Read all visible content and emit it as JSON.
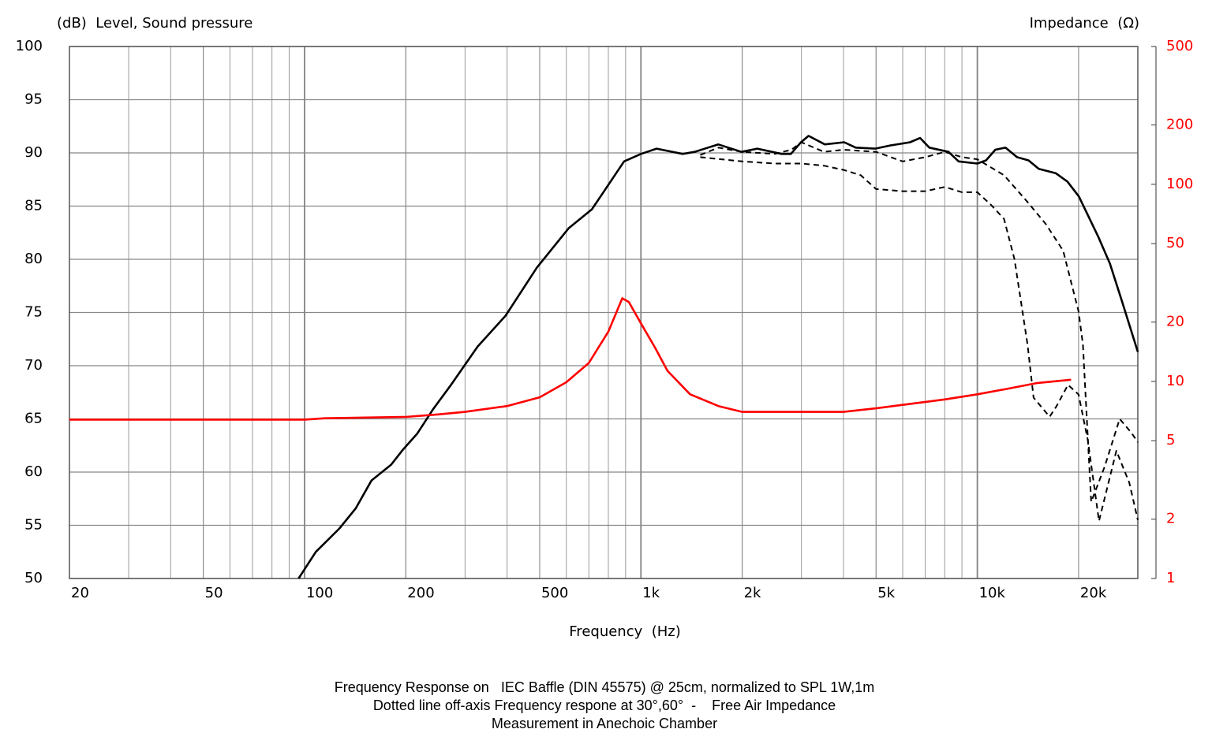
{
  "chart_data": {
    "type": "line",
    "ylabel": "(dB)  Level, Sound pressure",
    "y2label": "Impedance  (Ω)",
    "xlabel": "Frequency  (Hz)",
    "notes": [
      "Frequency Response on   IEC Baffle (DIN 45575) @ 25cm, normalized to SPL 1W,1m",
      "Dotted line off-axis Frequency respone at 30°,60°  -    Free Air Impedance",
      "Measurement in Anechoic Chamber"
    ],
    "xlog": true,
    "y2log": true,
    "grid": true,
    "xlim": [
      20,
      30000
    ],
    "xticks": [
      20,
      50,
      100,
      200,
      500,
      {
        "value": 1000,
        "label": "1k"
      },
      {
        "value": 2000,
        "label": "2k"
      },
      {
        "value": 5000,
        "label": "5k"
      },
      {
        "value": 10000,
        "label": "10k"
      },
      {
        "value": 20000,
        "label": "20k"
      }
    ],
    "ylim": [
      50,
      100
    ],
    "yticks": [
      50,
      55,
      60,
      65,
      70,
      75,
      80,
      85,
      90,
      95,
      100
    ],
    "y2lim": [
      1,
      500
    ],
    "y2ticks": [
      1,
      2,
      5,
      10,
      20,
      50,
      100,
      200,
      500
    ],
    "series": [
      {
        "color": "#000000",
        "dash": false,
        "x": [
          96,
          108,
          127,
          142,
          158,
          181,
          196,
          216,
          241,
          271,
          327,
          396,
          490,
          609,
          715,
          891,
          1000,
          1113,
          1331,
          1444,
          1697,
          1989,
          2218,
          2620,
          2790,
          2990,
          3150,
          3520,
          4020,
          4350,
          4970,
          5520,
          6310,
          6760,
          7200,
          8210,
          8800,
          10000,
          10610,
          11310,
          12120,
          13120,
          14200,
          15230,
          17100,
          18530,
          20040,
          22900,
          24780,
          26830,
          30000
        ],
        "values": [
          50,
          52.5,
          54.7,
          56.6,
          59.2,
          60.7,
          62.1,
          63.6,
          65.9,
          68.1,
          71.8,
          74.7,
          79.2,
          82.9,
          84.7,
          89.2,
          89.9,
          90.4,
          89.9,
          90.1,
          90.8,
          90.1,
          90.4,
          89.9,
          89.9,
          91.0,
          91.6,
          90.8,
          91.0,
          90.5,
          90.4,
          90.7,
          91.0,
          91.4,
          90.5,
          90.1,
          89.2,
          89.0,
          89.3,
          90.3,
          90.5,
          89.6,
          89.3,
          88.5,
          88.1,
          87.3,
          85.9,
          82.1,
          79.6,
          76.2,
          71.3
        ]
      },
      {
        "color": "#000000",
        "dash": true,
        "x": [
          1500,
          1700,
          2000,
          2500,
          2800,
          3000,
          3500,
          4000,
          5000,
          6000,
          7000,
          8000,
          9000,
          10000,
          12000,
          14000,
          16000,
          18000,
          20000,
          20600,
          21800,
          23900,
          26500,
          28700,
          30000
        ],
        "values": [
          89.8,
          90.5,
          90.1,
          89.9,
          90.3,
          91.0,
          90.1,
          90.3,
          90.1,
          89.2,
          89.6,
          90.1,
          89.6,
          89.4,
          87.9,
          85.5,
          83.3,
          80.8,
          75.1,
          72,
          57.2,
          60.5,
          65,
          63.7,
          62.8
        ]
      },
      {
        "color": "#000000",
        "dash": true,
        "x": [
          1500,
          2000,
          2500,
          3000,
          3500,
          4000,
          4500,
          5000,
          6000,
          7000,
          8000,
          9000,
          10000,
          11000,
          12000,
          12900,
          14100,
          14700,
          16400,
          17200,
          18600,
          20000,
          21300,
          23000,
          25900,
          28300,
          30000
        ],
        "values": [
          89.6,
          89.2,
          89.0,
          89.0,
          88.8,
          88.4,
          87.9,
          86.6,
          86.4,
          86.4,
          86.8,
          86.3,
          86.3,
          85.1,
          83.8,
          80,
          72,
          67,
          65.2,
          66.2,
          68.2,
          67.3,
          63,
          55.4,
          62,
          59,
          55.5
        ]
      },
      {
        "color": "#ff0000",
        "dash": false,
        "axis": "y2",
        "x": [
          20,
          100,
          115,
          200,
          250,
          300,
          400,
          500,
          600,
          700,
          800,
          880,
          920,
          1000,
          1100,
          1200,
          1400,
          1700,
          2000,
          3000,
          4000,
          5000,
          6000,
          8000,
          10000,
          12000,
          15000,
          19000
        ],
        "values": [
          6.4,
          6.4,
          6.5,
          6.6,
          6.8,
          7.0,
          7.5,
          8.3,
          9.9,
          12.4,
          17.9,
          26.4,
          25.3,
          19.7,
          14.9,
          11.3,
          8.6,
          7.5,
          7.0,
          7.0,
          7.0,
          7.3,
          7.6,
          8.1,
          8.6,
          9.1,
          9.8,
          10.2
        ]
      }
    ]
  }
}
